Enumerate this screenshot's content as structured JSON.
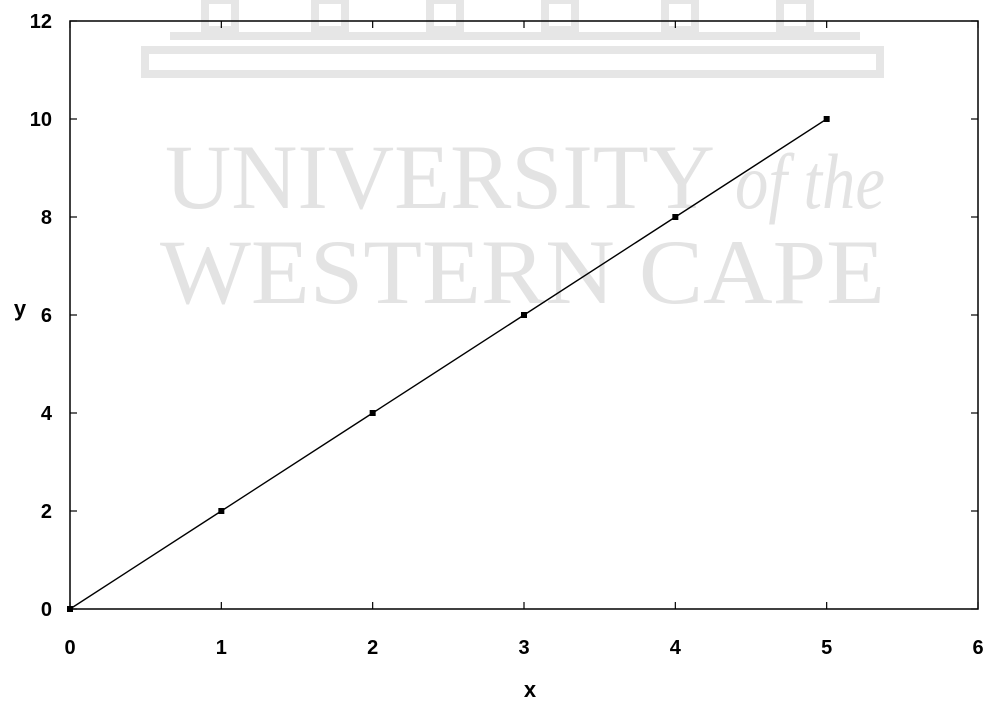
{
  "chart_data": {
    "type": "line",
    "title": "",
    "xlabel": "x",
    "ylabel": "y",
    "xlim": [
      0,
      6
    ],
    "ylim": [
      0,
      12
    ],
    "xticks": [
      0,
      1,
      2,
      3,
      4,
      5,
      6
    ],
    "yticks": [
      0,
      2,
      4,
      6,
      8,
      10,
      12
    ],
    "grid": false,
    "legend": "none",
    "series": [
      {
        "x": [
          0,
          1,
          2,
          3,
          4,
          5
        ],
        "y": [
          0,
          2,
          4,
          6,
          8,
          10
        ],
        "color": "#000000",
        "markers": true
      }
    ]
  },
  "watermark": {
    "line1": "UNIVERSITY",
    "line1_suffix": "of the",
    "line2": "WESTERN CAPE",
    "color": "#e3e3e3"
  }
}
